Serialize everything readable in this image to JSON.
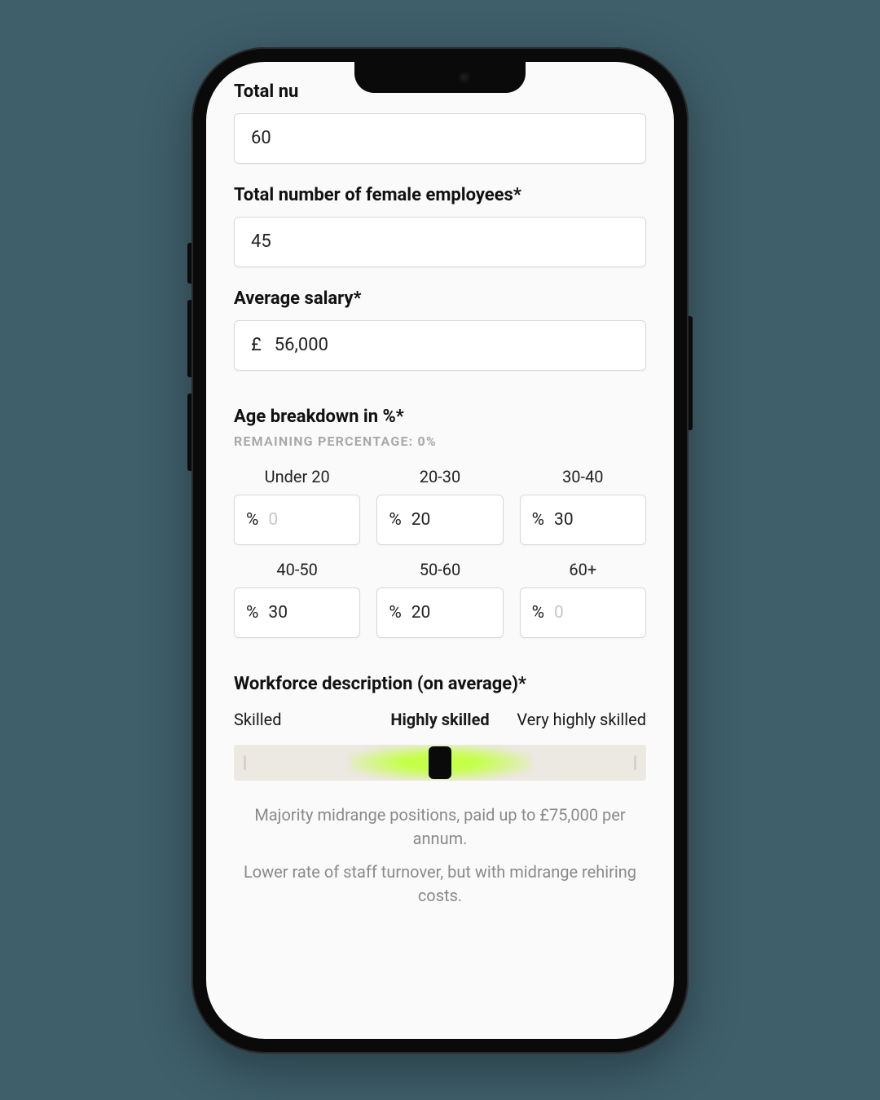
{
  "colors": {
    "page_bg": "#3f5f6b",
    "screen_bg": "#fafafa",
    "text": "#111111",
    "muted": "#a9a9a9",
    "desc": "#8a8a8a",
    "input_border": "#d8d8d8",
    "slider_track": "#ece8e2",
    "slider_accent": "#c5ff4a",
    "slider_handle": "#0a0a0a",
    "placeholder": "#c7c7c7"
  },
  "form": {
    "total_label": "Total nu",
    "total_value": "60",
    "female_label": "Total number of female employees*",
    "female_value": "45",
    "salary_label": "Average salary*",
    "salary_prefix": "£",
    "salary_value": "56,000"
  },
  "age": {
    "heading": "Age breakdown in %*",
    "remaining": "REMAINING PERCENTAGE: 0%",
    "pct_symbol": "%",
    "cells": [
      {
        "label": "Under 20",
        "value": "0",
        "placeholder": true
      },
      {
        "label": "20-30",
        "value": "20",
        "placeholder": false
      },
      {
        "label": "30-40",
        "value": "30",
        "placeholder": false
      },
      {
        "label": "40-50",
        "value": "30",
        "placeholder": false
      },
      {
        "label": "50-60",
        "value": "20",
        "placeholder": false
      },
      {
        "label": "60+",
        "value": "0",
        "placeholder": true
      }
    ]
  },
  "skill": {
    "heading": "Workforce description (on average)*",
    "options": [
      "Skilled",
      "Highly skilled",
      "Very highly skilled"
    ],
    "selected_index": 1,
    "slider": {
      "position_pct": 50,
      "glow_color": "#c5ff4a",
      "track_color": "#ece8e2"
    },
    "desc1": "Majority midrange positions, paid up to £75,000 per annum.",
    "desc2": "Lower rate of staff turnover, but with midrange rehiring costs."
  }
}
